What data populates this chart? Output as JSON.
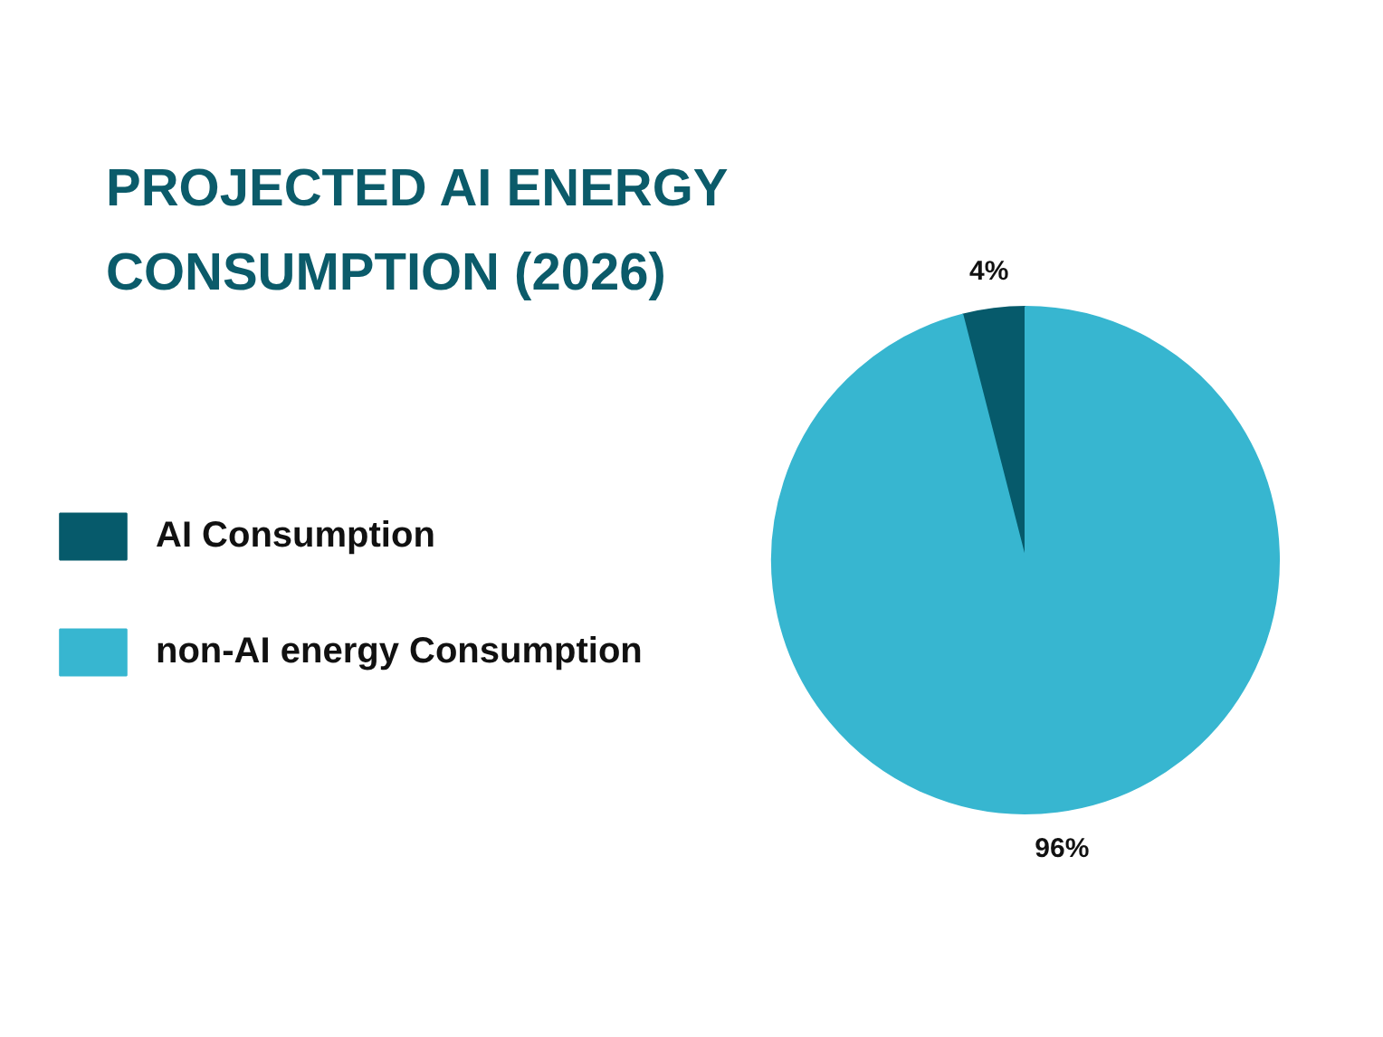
{
  "chart_data": {
    "type": "pie",
    "title": "PROJECTED AI ENERGY CONSUMPTION (2026)",
    "categories": [
      "AI Consumption",
      "non-AI energy Consumption"
    ],
    "values": [
      4,
      96
    ],
    "colors": [
      "#065a6b",
      "#37b6d0"
    ],
    "value_labels": [
      "4%",
      "96%"
    ],
    "legend": "left"
  }
}
